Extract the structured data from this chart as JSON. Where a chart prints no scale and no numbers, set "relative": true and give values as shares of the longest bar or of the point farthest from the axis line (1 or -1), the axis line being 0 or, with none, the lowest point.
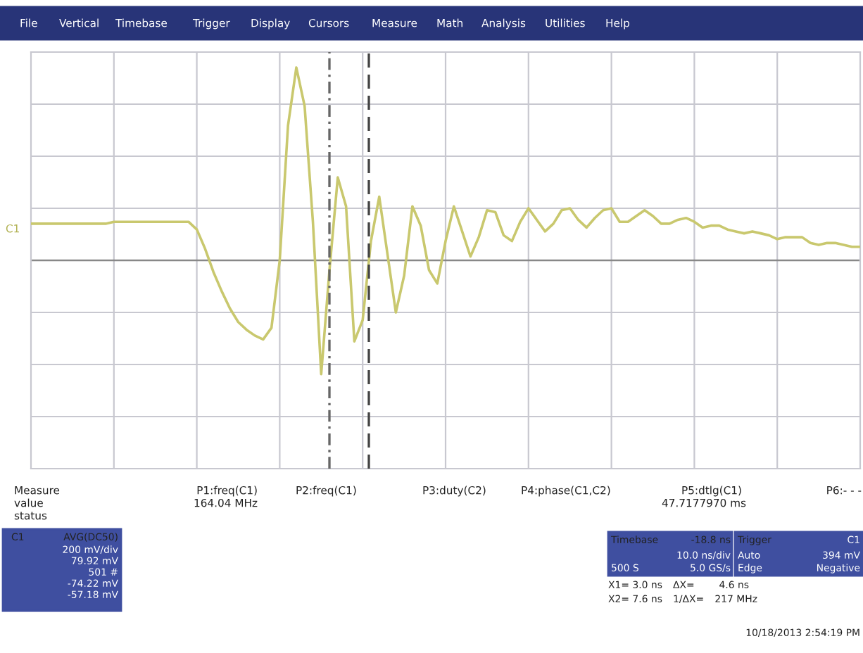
{
  "chart_data": {
    "type": "line",
    "relative": true,
    "categories": [
      null,
      null,
      null,
      null,
      null,
      null,
      null,
      null,
      null,
      null,
      null,
      null,
      null,
      null,
      null,
      null,
      null,
      null,
      null,
      null,
      null,
      null,
      null,
      null,
      null,
      null,
      null,
      null,
      null,
      null,
      null,
      null,
      null,
      null,
      null,
      null,
      null,
      null,
      null,
      null,
      null,
      null,
      null,
      null,
      null,
      null,
      null,
      null,
      null,
      null,
      null,
      null,
      null,
      null,
      null,
      null,
      null,
      null,
      null,
      null,
      null,
      null,
      null,
      null,
      null,
      null,
      null,
      null,
      null,
      null,
      null,
      null,
      null,
      null,
      null,
      null,
      null,
      null,
      null,
      null,
      null,
      null,
      null,
      null,
      null,
      null,
      null,
      null,
      null,
      null,
      null,
      null,
      null,
      null,
      null,
      null,
      null,
      null,
      null,
      null,
      null
    ],
    "series": [
      {
        "color": "#c9c86e",
        "values": [
          0.19,
          0.19,
          0.19,
          0.19,
          0.19,
          0.19,
          0.19,
          0.19,
          0.19,
          0.19,
          0.2,
          0.2,
          0.2,
          0.2,
          0.2,
          0.2,
          0.2,
          0.2,
          0.2,
          0.2,
          0.16,
          0.06,
          -0.06,
          -0.16,
          -0.25,
          -0.32,
          -0.36,
          -0.39,
          -0.41,
          -0.35,
          0,
          0.7,
          1,
          0.8,
          0.2,
          -0.59,
          -0.05,
          0.43,
          0.28,
          -0.42,
          -0.31,
          0.1,
          0.33,
          0.03,
          -0.27,
          -0.08,
          0.28,
          0.18,
          -0.05,
          -0.12,
          0.1,
          0.28,
          0.15,
          0.02,
          0.12,
          0.26,
          0.25,
          0.13,
          0.1,
          0.2,
          0.27,
          0.21,
          0.15,
          0.19,
          0.26,
          0.27,
          0.21,
          0.17,
          0.22,
          0.26,
          0.27,
          0.2,
          0.2,
          0.23,
          0.26,
          0.23,
          0.19,
          0.19,
          0.21,
          0.22,
          0.2,
          0.17,
          0.18,
          0.18,
          0.16,
          0.15,
          0.14,
          0.15,
          0.14,
          0.13,
          0.11,
          0.12,
          0.12,
          0.12,
          0.09,
          0.08,
          0.09,
          0.09,
          0.08,
          0.07,
          0.07
        ]
      }
    ],
    "grid": true,
    "line_style": "solid",
    "annotations": [
      "File",
      "Vertical",
      "Timebase",
      "Trigger",
      "Display",
      "Cursors",
      "Measure",
      "Math",
      "Analysis",
      "Utilities",
      "Help",
      "C1",
      "Measure",
      "value",
      "status",
      "P1:freq(C1)",
      "164.04 MHz",
      "P2:freq(C1)",
      "P3:duty(C2)",
      "P4:phase(C1,C2)",
      "P5:dtlg(C1)",
      "47.7177970 ms",
      "P6:- - -",
      "C1",
      "AVG(DC50)",
      "200 mV/div",
      "79.92 mV",
      "501 #",
      "-74.22 mV",
      "-57.18 mV",
      "Timebase",
      "-18.8 ns",
      "10.0 ns/div",
      "500 S",
      "5.0 GS/s",
      "Trigger",
      "C1",
      "Auto",
      "394 mV",
      "Edge",
      "Negative",
      "X1= 3.0 ns",
      "ΔX=",
      "4.6 ns",
      "X2= 7.6 ns",
      "1/ΔX=",
      "217 MHz",
      "10/18/2013 2:54:19 PM"
    ]
  }
}
